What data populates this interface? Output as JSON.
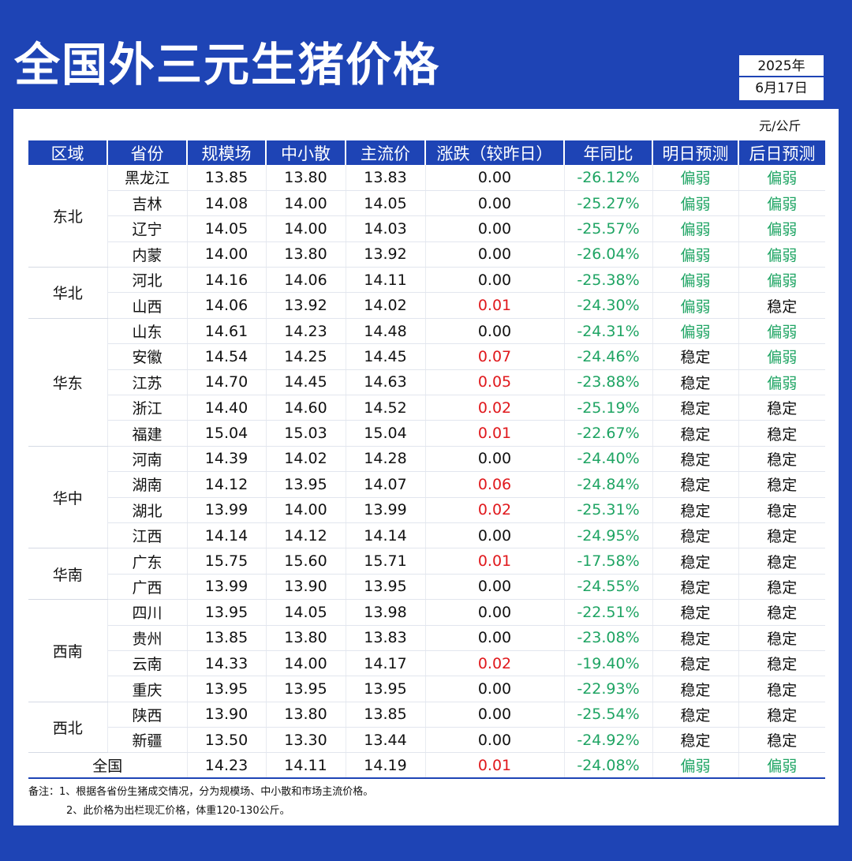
{
  "title": "全国外三元生猪价格",
  "date": {
    "year": "2025年",
    "day": "6月17日"
  },
  "unit": "元/公斤",
  "headers": [
    "区域",
    "省份",
    "规模场",
    "中小散",
    "主流价",
    "涨跌（较昨日）",
    "年同比",
    "明日预测",
    "后日预测"
  ],
  "regions": [
    {
      "name": "东北",
      "rows": [
        [
          "黑龙江",
          "13.85",
          "13.80",
          "13.83",
          "0.00",
          "-26.12%",
          "偏弱",
          "偏弱"
        ],
        [
          "吉林",
          "14.08",
          "14.00",
          "14.05",
          "0.00",
          "-25.27%",
          "偏弱",
          "偏弱"
        ],
        [
          "辽宁",
          "14.05",
          "14.00",
          "14.03",
          "0.00",
          "-25.57%",
          "偏弱",
          "偏弱"
        ],
        [
          "内蒙",
          "14.00",
          "13.80",
          "13.92",
          "0.00",
          "-26.04%",
          "偏弱",
          "偏弱"
        ]
      ]
    },
    {
      "name": "华北",
      "rows": [
        [
          "河北",
          "14.16",
          "14.06",
          "14.11",
          "0.00",
          "-25.38%",
          "偏弱",
          "偏弱"
        ],
        [
          "山西",
          "14.06",
          "13.92",
          "14.02",
          "0.01",
          "-24.30%",
          "偏弱",
          "稳定"
        ]
      ]
    },
    {
      "name": "华东",
      "rows": [
        [
          "山东",
          "14.61",
          "14.23",
          "14.48",
          "0.00",
          "-24.31%",
          "偏弱",
          "偏弱"
        ],
        [
          "安徽",
          "14.54",
          "14.25",
          "14.45",
          "0.07",
          "-24.46%",
          "稳定",
          "偏弱"
        ],
        [
          "江苏",
          "14.70",
          "14.45",
          "14.63",
          "0.05",
          "-23.88%",
          "稳定",
          "偏弱"
        ],
        [
          "浙江",
          "14.40",
          "14.60",
          "14.52",
          "0.02",
          "-25.19%",
          "稳定",
          "稳定"
        ],
        [
          "福建",
          "15.04",
          "15.03",
          "15.04",
          "0.01",
          "-22.67%",
          "稳定",
          "稳定"
        ]
      ]
    },
    {
      "name": "华中",
      "rows": [
        [
          "河南",
          "14.39",
          "14.02",
          "14.28",
          "0.00",
          "-24.40%",
          "稳定",
          "稳定"
        ],
        [
          "湖南",
          "14.12",
          "13.95",
          "14.07",
          "0.06",
          "-24.84%",
          "稳定",
          "稳定"
        ],
        [
          "湖北",
          "13.99",
          "14.00",
          "13.99",
          "0.02",
          "-25.31%",
          "稳定",
          "稳定"
        ],
        [
          "江西",
          "14.14",
          "14.12",
          "14.14",
          "0.00",
          "-24.95%",
          "稳定",
          "稳定"
        ]
      ]
    },
    {
      "name": "华南",
      "rows": [
        [
          "广东",
          "15.75",
          "15.60",
          "15.71",
          "0.01",
          "-17.58%",
          "稳定",
          "稳定"
        ],
        [
          "广西",
          "13.99",
          "13.90",
          "13.95",
          "0.00",
          "-24.55%",
          "稳定",
          "稳定"
        ]
      ]
    },
    {
      "name": "西南",
      "rows": [
        [
          "四川",
          "13.95",
          "14.05",
          "13.98",
          "0.00",
          "-22.51%",
          "稳定",
          "稳定"
        ],
        [
          "贵州",
          "13.85",
          "13.80",
          "13.83",
          "0.00",
          "-23.08%",
          "稳定",
          "稳定"
        ],
        [
          "云南",
          "14.33",
          "14.00",
          "14.17",
          "0.02",
          "-19.40%",
          "稳定",
          "稳定"
        ],
        [
          "重庆",
          "13.95",
          "13.95",
          "13.95",
          "0.00",
          "-22.93%",
          "稳定",
          "稳定"
        ]
      ]
    },
    {
      "name": "西北",
      "rows": [
        [
          "陕西",
          "13.90",
          "13.80",
          "13.85",
          "0.00",
          "-25.54%",
          "稳定",
          "稳定"
        ],
        [
          "新疆",
          "13.50",
          "13.30",
          "13.44",
          "0.00",
          "-24.92%",
          "稳定",
          "稳定"
        ]
      ]
    }
  ],
  "national": [
    "全国",
    "14.23",
    "14.11",
    "14.19",
    "0.01",
    "-24.08%",
    "偏弱",
    "偏弱"
  ],
  "notes": [
    "备注：1、根据各省份生猪成交情况，分为规模场、中小散和市场主流价格。",
    "2、此价格为出栏现汇价格，体重120-130公斤。"
  ],
  "colors": {
    "brand": "#1e44b5",
    "rise": "#e0181c",
    "weak": "#1ea463"
  }
}
